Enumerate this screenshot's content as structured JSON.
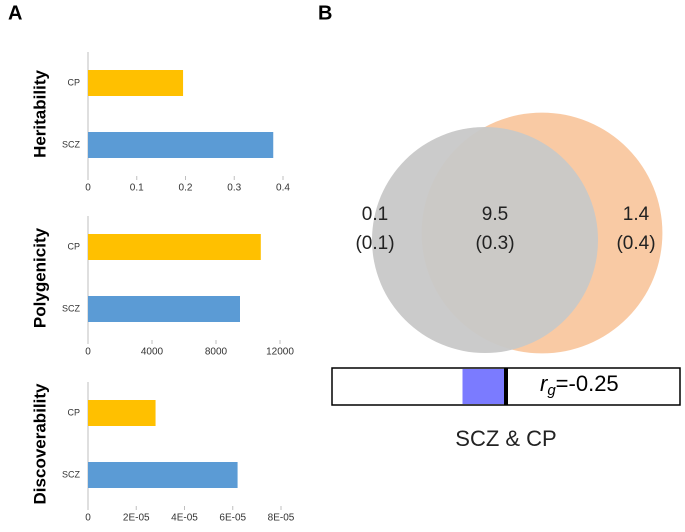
{
  "panels": [
    "A",
    "B"
  ],
  "chart_data": [
    {
      "type": "hbar",
      "ylabel": "Heritability",
      "categories": [
        "CP",
        "SCZ"
      ],
      "values": [
        0.195,
        0.38
      ],
      "colors": [
        "#FFC000",
        "#5B9BD5"
      ],
      "xlim": [
        0,
        0.4
      ],
      "xticks": [
        0,
        0.1,
        0.2,
        0.3,
        0.4
      ]
    },
    {
      "type": "hbar",
      "ylabel": "Polygenicity",
      "categories": [
        "CP",
        "SCZ"
      ],
      "values": [
        10800,
        9500
      ],
      "colors": [
        "#FFC000",
        "#5B9BD5"
      ],
      "xlim": [
        0,
        12000
      ],
      "xticks": [
        0,
        4000,
        8000,
        12000
      ]
    },
    {
      "type": "hbar",
      "ylabel": "Discoverability",
      "categories": [
        "CP",
        "SCZ"
      ],
      "values": [
        2.8e-05,
        6.2e-05
      ],
      "colors": [
        "#FFC000",
        "#5B9BD5"
      ],
      "xlim": [
        0,
        8e-05
      ],
      "xticks": [
        0,
        {
          "value": 2e-05,
          "label": "2E-05"
        },
        {
          "value": 4e-05,
          "label": "4E-05"
        },
        {
          "value": 6e-05,
          "label": "6E-05"
        },
        {
          "value": 8e-05,
          "label": "8E-05"
        }
      ]
    },
    {
      "type": "venn",
      "title": "SCZ & CP",
      "values": [
        0.1,
        9.5,
        1.4
      ],
      "errors": [
        0.1,
        0.3,
        0.4
      ],
      "error_labels": [
        "(0.1)",
        "(0.3)",
        "(0.4)"
      ],
      "colors": [
        "#c8c8c8",
        "#f8c49a"
      ],
      "rg_symbol": "r",
      "rg_subscript": "g",
      "rg": {
        "value": -0.25,
        "label": "=-0.25"
      },
      "rg_lim": [
        -1,
        1
      ],
      "rg_color": "#7b7bff"
    }
  ]
}
